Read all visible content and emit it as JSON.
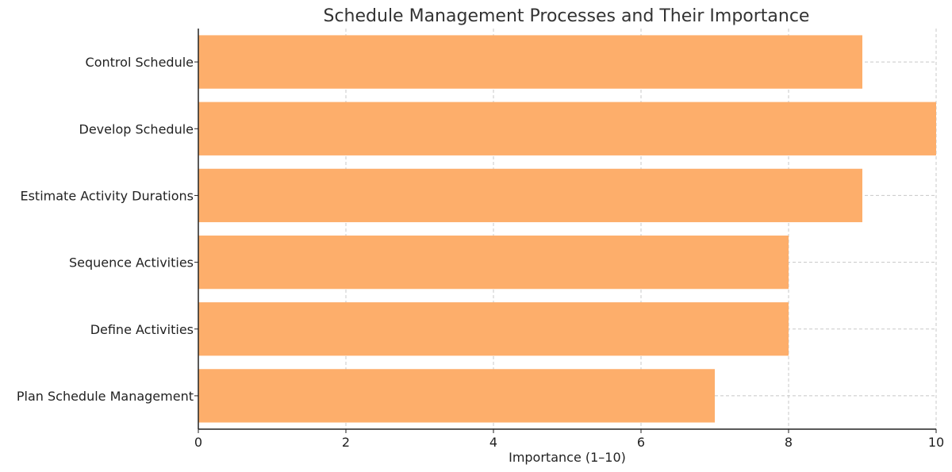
{
  "chart_data": {
    "type": "bar",
    "orientation": "horizontal",
    "title": "Schedule Management Processes and Their Importance",
    "xlabel": "Importance (1–10)",
    "ylabel": "",
    "xlim": [
      0,
      10
    ],
    "xticks": [
      0,
      2,
      4,
      6,
      8,
      10
    ],
    "grid": true,
    "bar_color": "#fdae6b",
    "categories": [
      "Plan Schedule Management",
      "Define Activities",
      "Sequence Activities",
      "Estimate Activity Durations",
      "Develop Schedule",
      "Control Schedule"
    ],
    "values": [
      7,
      8,
      8,
      9,
      10,
      9
    ]
  }
}
